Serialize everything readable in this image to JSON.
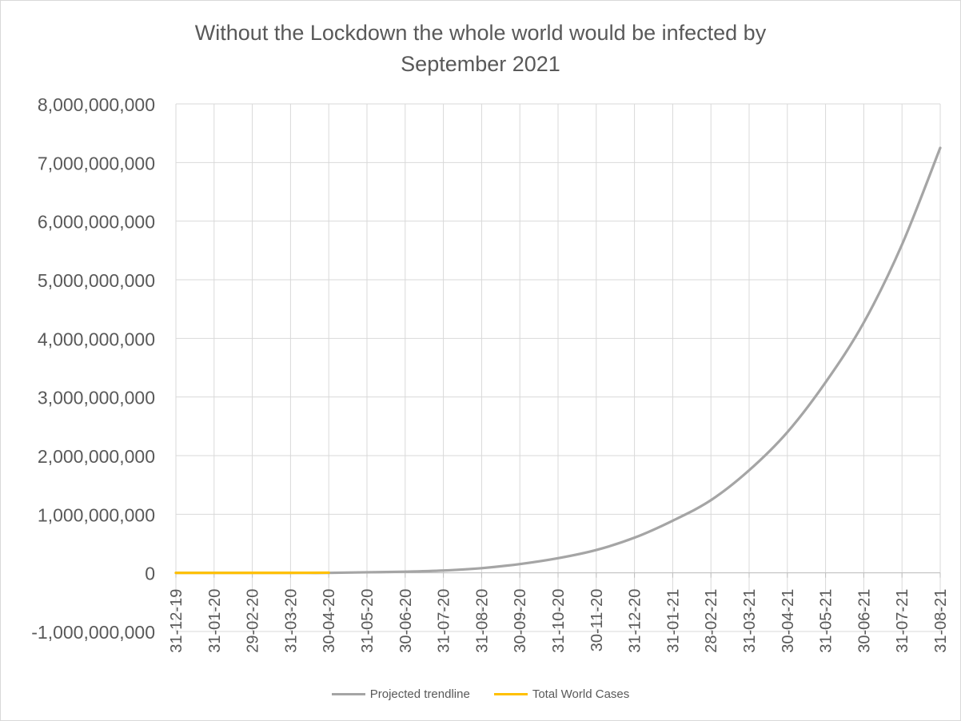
{
  "chart_data": {
    "type": "line",
    "title": "Without the Lockdown the whole world would be infected by September 2021",
    "title_lines": [
      "Without the Lockdown the whole world would be infected by",
      "September 2021"
    ],
    "xlabel": "",
    "ylabel": "",
    "x_ticks": [
      "31-12-19",
      "31-01-20",
      "29-02-20",
      "31-03-20",
      "30-04-20",
      "31-05-20",
      "30-06-20",
      "31-07-20",
      "31-08-20",
      "30-09-20",
      "31-10-20",
      "30-11-20",
      "31-12-20",
      "31-01-21",
      "28-02-21",
      "31-03-21",
      "30-04-21",
      "31-05-21",
      "30-06-21",
      "31-07-21",
      "31-08-21"
    ],
    "y_ticks": [
      "8,000,000,000",
      "7,000,000,000",
      "6,000,000,000",
      "5,000,000,000",
      "4,000,000,000",
      "3,000,000,000",
      "2,000,000,000",
      "1,000,000,000",
      "0",
      "-1,000,000,000"
    ],
    "ylim": [
      -1000000000,
      8000000000
    ],
    "ystep": 1000000000,
    "grid": true,
    "legend_position": "bottom",
    "series": [
      {
        "name": "Projected trendline",
        "color": "#a5a5a5",
        "x": [
          "31-12-19",
          "31-01-20",
          "29-02-20",
          "31-03-20",
          "30-04-20",
          "31-05-20",
          "30-06-20",
          "31-07-20",
          "31-08-20",
          "30-09-20",
          "31-10-20",
          "30-11-20",
          "31-12-20",
          "31-01-21",
          "28-02-21",
          "31-03-21",
          "30-04-21",
          "31-05-21",
          "30-06-21",
          "31-07-21",
          "31-08-21"
        ],
        "values": [
          0,
          0,
          0,
          0,
          0,
          10000000,
          20000000,
          40000000,
          80000000,
          150000000,
          250000000,
          390000000,
          600000000,
          890000000,
          1240000000,
          1750000000,
          2400000000,
          3250000000,
          4270000000,
          5600000000,
          7250000000
        ]
      },
      {
        "name": "Total World Cases",
        "color": "#ffc000",
        "x": [
          "31-12-19",
          "31-01-20",
          "29-02-20",
          "31-03-20",
          "30-04-20"
        ],
        "values": [
          27,
          9800,
          86000,
          860000,
          3300000
        ]
      }
    ]
  }
}
